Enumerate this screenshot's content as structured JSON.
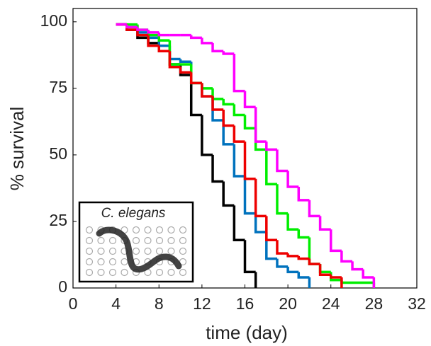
{
  "chart_data": {
    "type": "step",
    "xlabel": "time (day)",
    "ylabel": "% survival",
    "xlim": [
      0,
      32
    ],
    "xticks": [
      0,
      4,
      8,
      12,
      16,
      20,
      24,
      28,
      32
    ],
    "ylim": [
      0,
      105
    ],
    "yticks": [
      0,
      25,
      50,
      75,
      100
    ],
    "series": [
      {
        "color": "#000000",
        "x": [
          4,
          5,
          6,
          7,
          8,
          9,
          10,
          11,
          12,
          13,
          14,
          15,
          16,
          17
        ],
        "values": [
          99,
          97,
          94,
          92,
          89,
          84,
          80,
          65,
          50,
          40,
          31,
          18,
          6,
          0
        ]
      },
      {
        "color": "#0072bd",
        "x": [
          4,
          5,
          6,
          7,
          8,
          9,
          10,
          11,
          12,
          13,
          14,
          15,
          16,
          17,
          18,
          19,
          20,
          21,
          22
        ],
        "values": [
          99,
          98,
          96,
          94,
          91,
          86,
          85,
          77,
          72,
          63,
          54,
          42,
          28,
          21,
          11,
          8,
          6,
          4,
          0
        ]
      },
      {
        "color": "#00ee00",
        "x": [
          4,
          6,
          7,
          8,
          9,
          10,
          11,
          12,
          13,
          14,
          15,
          16,
          17,
          18,
          19,
          20,
          21,
          22,
          23,
          24,
          25,
          28
        ],
        "values": [
          99,
          97,
          95,
          93,
          84,
          84,
          77,
          75,
          71,
          69,
          65,
          60,
          52,
          39,
          28,
          22,
          19,
          9,
          6,
          3,
          2,
          0
        ]
      },
      {
        "color": "#ee0000",
        "x": [
          4,
          5,
          6,
          7,
          8,
          9,
          10,
          11,
          12,
          13,
          14,
          15,
          16,
          17,
          18,
          19,
          20,
          21,
          22,
          23,
          24,
          25
        ],
        "values": [
          99,
          97,
          95,
          91,
          89,
          83,
          81,
          77,
          72,
          67,
          61,
          55,
          41,
          27,
          18,
          13,
          12,
          11,
          9,
          5,
          4,
          0
        ]
      },
      {
        "color": "#ff00ff",
        "x": [
          4,
          5,
          6,
          7,
          8,
          9,
          10,
          11,
          12,
          13,
          14,
          15,
          16,
          17,
          18,
          19,
          20,
          21,
          22,
          23,
          24,
          25,
          26,
          27,
          28
        ],
        "values": [
          99,
          98,
          97,
          96,
          95,
          95,
          95,
          94,
          92,
          89,
          88,
          74,
          68,
          55,
          52,
          44,
          38,
          33,
          27,
          22,
          14,
          10,
          7,
          4,
          4
        ]
      }
    ]
  },
  "inset_label": "C. elegans"
}
